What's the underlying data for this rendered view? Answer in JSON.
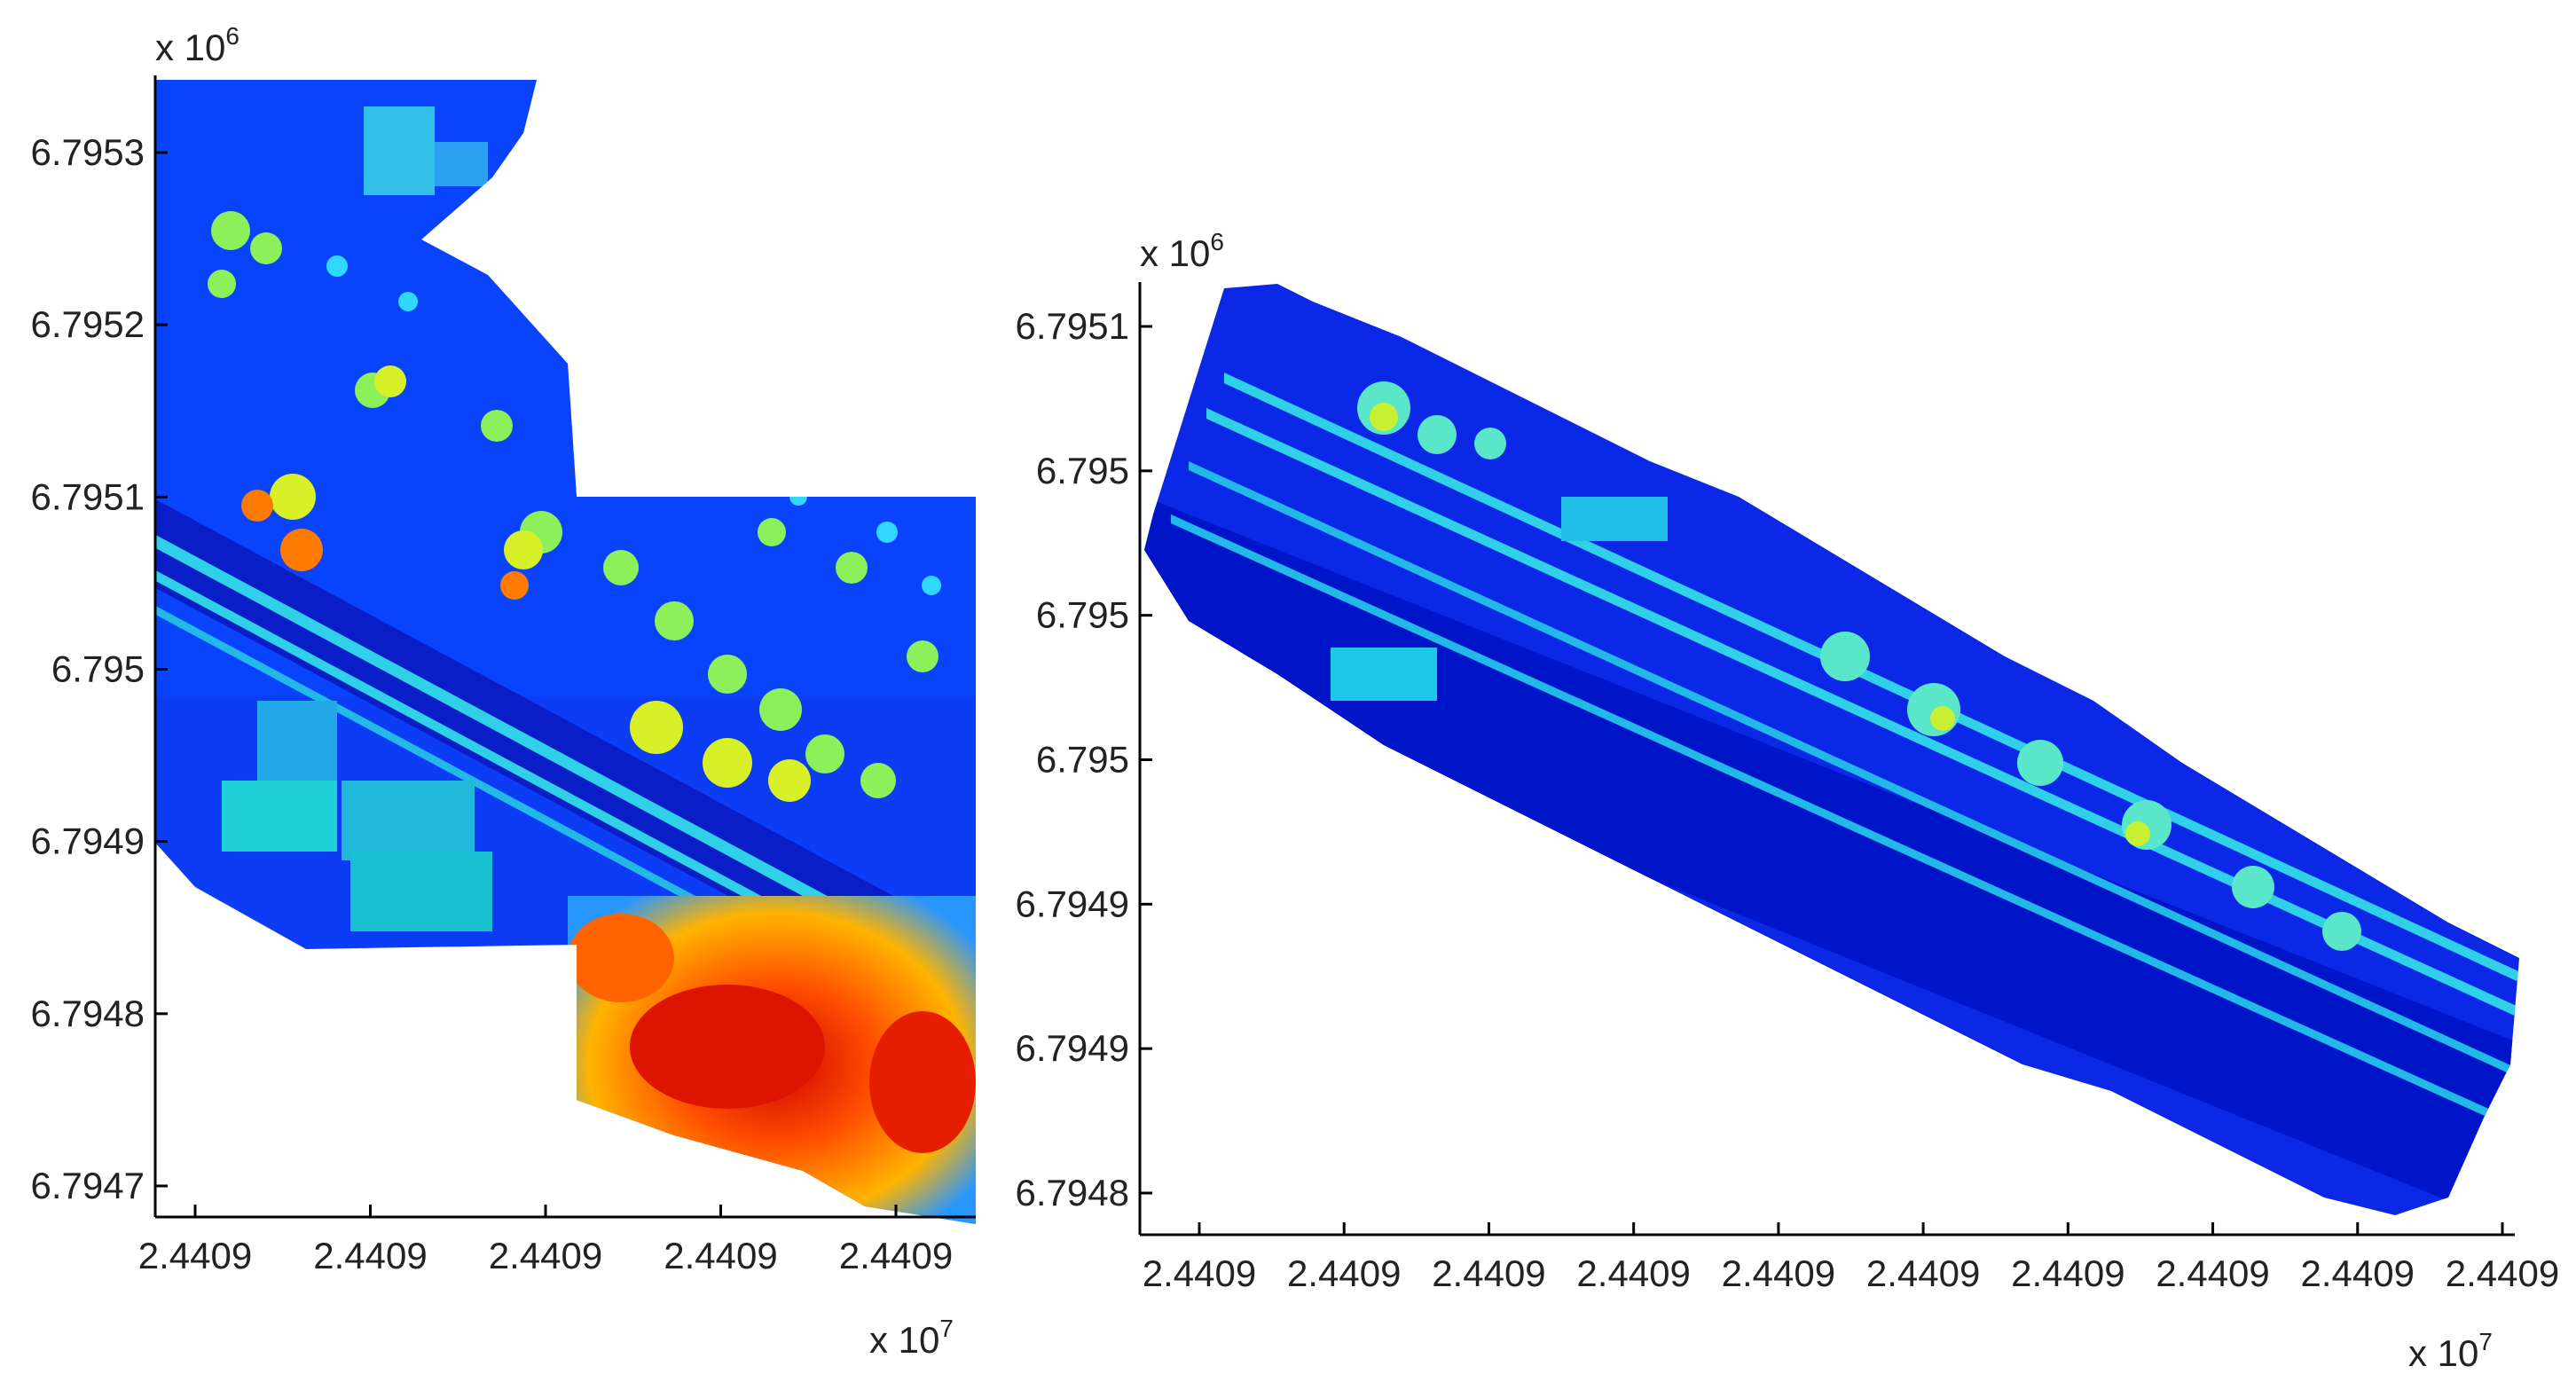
{
  "chart_data": [
    {
      "type": "heatmap",
      "title": "",
      "xlabel": "",
      "ylabel": "",
      "x_exponent": "x 10",
      "x_exponent_power": "7",
      "y_exponent": "x 10",
      "y_exponent_power": "6",
      "x_ticks": [
        "2.4409",
        "2.4409",
        "2.4409",
        "2.4409",
        "2.4409"
      ],
      "y_ticks": [
        "6.7953",
        "6.7952",
        "6.7951",
        "6.795",
        "6.7949",
        "6.7948",
        "6.7947"
      ],
      "colormap": "jet",
      "grid": false
    },
    {
      "type": "heatmap",
      "title": "",
      "xlabel": "",
      "ylabel": "",
      "x_exponent": "x 10",
      "x_exponent_power": "7",
      "y_exponent": "x 10",
      "y_exponent_power": "6",
      "x_ticks": [
        "2.4409",
        "2.4409",
        "2.4409",
        "2.4409",
        "2.4409",
        "2.4409",
        "2.4409",
        "2.4409",
        "2.4409",
        "2.4409"
      ],
      "y_ticks": [
        "6.7951",
        "6.795",
        "6.795",
        "6.795",
        "6.7949",
        "6.7949",
        "6.7948"
      ],
      "colormap": "jet",
      "grid": false
    }
  ],
  "colors": {
    "low": "#0000ff",
    "mid_low": "#0a4cff",
    "mid": "#19d6e6",
    "mid_high": "#c8f032",
    "high": "#ff3c00",
    "peak": "#e00000"
  }
}
